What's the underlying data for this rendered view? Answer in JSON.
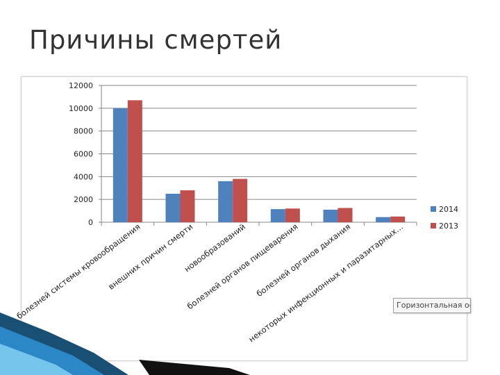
{
  "slide": {
    "title": "Причины смертей"
  },
  "tooltip": {
    "text": "Горизонтальная ос"
  },
  "colors": {
    "2014": "#4f81bd",
    "2013": "#c0504d",
    "grid": "#868686",
    "axis": "#555555",
    "accent": "#1f8fc8"
  },
  "chart_data": {
    "type": "bar",
    "title": "",
    "xlabel": "",
    "ylabel": "",
    "ylim": [
      0,
      12000
    ],
    "yticks": [
      0,
      2000,
      4000,
      6000,
      8000,
      10000,
      12000
    ],
    "grid": true,
    "legend_position": "right",
    "categories": [
      "болезней системы кровообращения",
      "внешних причин смерти",
      "новообразований",
      "болезней органов пищеварения",
      "болезней органов дыхания",
      "некоторых инфекционных и паразитарных…"
    ],
    "series": [
      {
        "name": "2014",
        "values": [
          10000,
          2500,
          3600,
          1150,
          1100,
          450
        ]
      },
      {
        "name": "2013",
        "values": [
          10700,
          2800,
          3800,
          1200,
          1250,
          500
        ]
      }
    ]
  }
}
